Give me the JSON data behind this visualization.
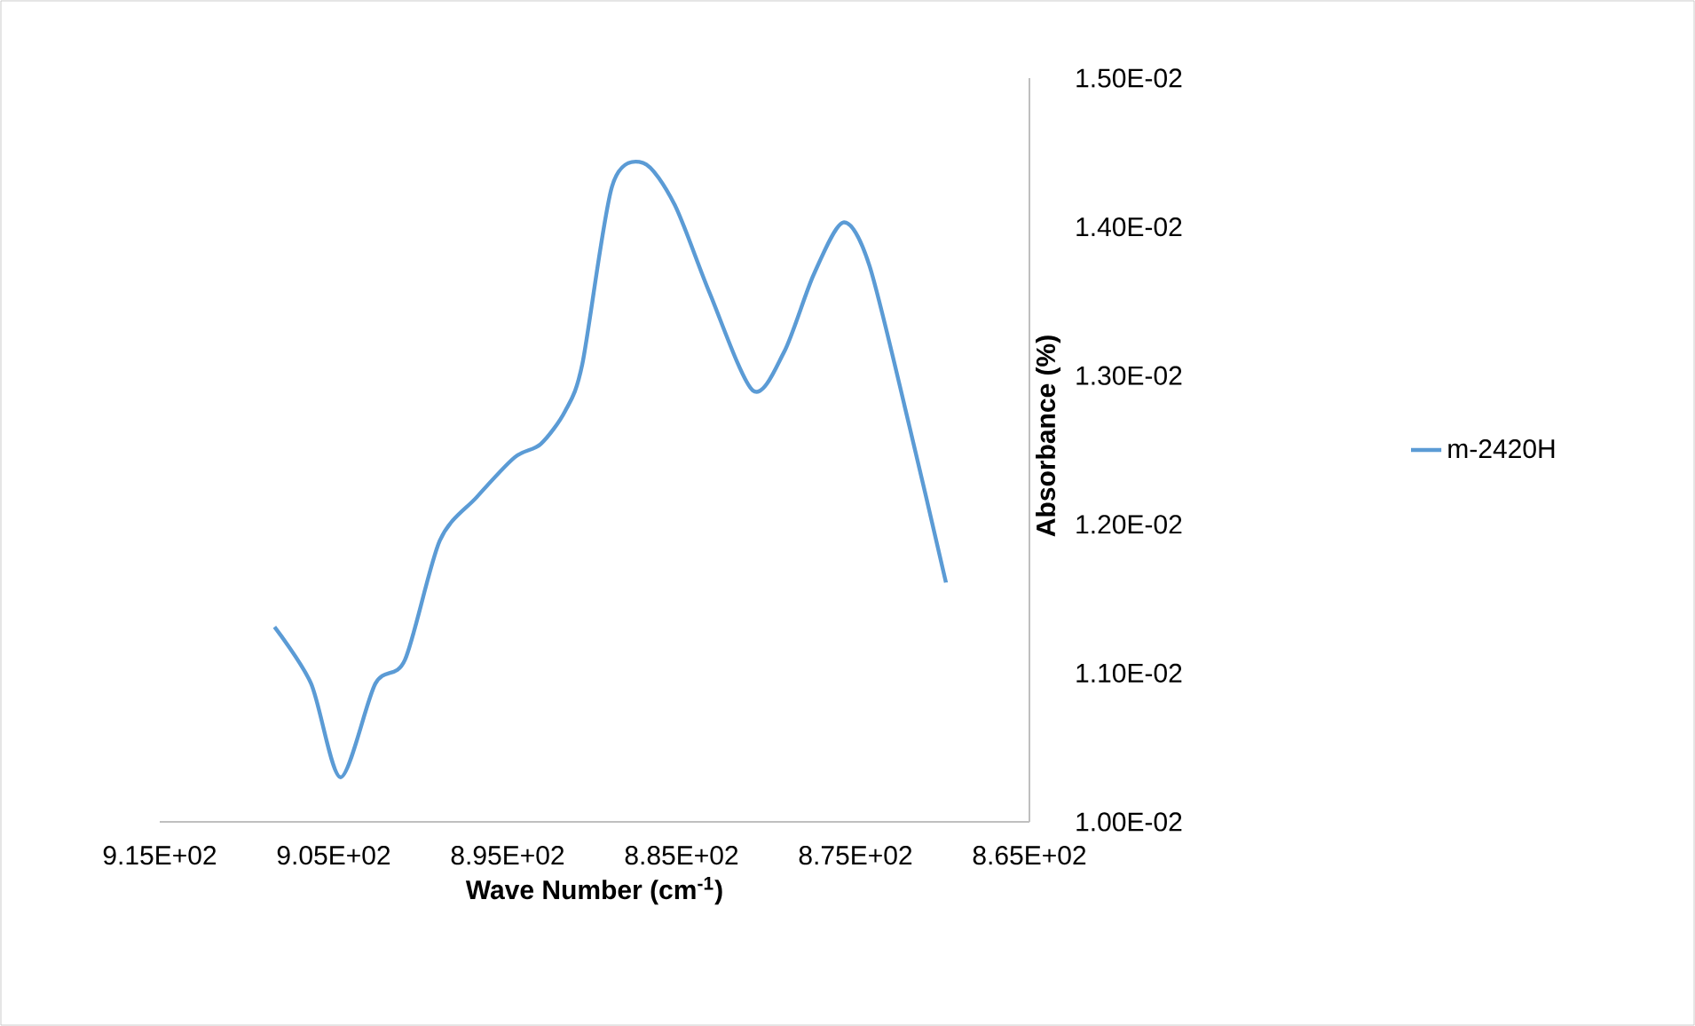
{
  "chart_data": {
    "type": "line",
    "xlabel": "Wave Number (cm$^{-1}$)",
    "ylabel": "Absorbance (%)",
    "x": [
      908.4,
      906.3,
      904.6,
      902.6,
      900.9,
      898.9,
      896.8,
      894.6,
      893.1,
      891.7,
      890.7,
      889.0,
      887.2,
      885.4,
      883.4,
      880.9,
      879.1,
      877.4,
      875.7,
      874.2,
      871.9,
      869.8
    ],
    "series": [
      {
        "name": "m-2420H",
        "color": "#5b9bd5",
        "values": [
          0.01131,
          0.01093,
          0.0103,
          0.01093,
          0.01109,
          0.01189,
          0.01218,
          0.01245,
          0.01254,
          0.01276,
          0.01308,
          0.01427,
          0.01443,
          0.01415,
          0.01356,
          0.0129,
          0.01316,
          0.01368,
          0.01403,
          0.01374,
          0.01266,
          0.01161
        ]
      }
    ],
    "xlim": [
      915,
      865
    ],
    "ylim": [
      0.01,
      0.015
    ],
    "xticks": [
      {
        "value": 915,
        "label": "9.15E+02"
      },
      {
        "value": 905,
        "label": "9.05E+02"
      },
      {
        "value": 895,
        "label": "8.95E+02"
      },
      {
        "value": 885,
        "label": "8.85E+02"
      },
      {
        "value": 875,
        "label": "8.75E+02"
      },
      {
        "value": 865,
        "label": "8.65E+02"
      }
    ],
    "yticks": [
      {
        "value": 0.01,
        "label": "1.00E-02"
      },
      {
        "value": 0.011,
        "label": "1.10E-02"
      },
      {
        "value": 0.012,
        "label": "1.20E-02"
      },
      {
        "value": 0.013,
        "label": "1.30E-02"
      },
      {
        "value": 0.014,
        "label": "1.40E-02"
      },
      {
        "value": 0.015,
        "label": "1.50E-02"
      }
    ],
    "legend": "right",
    "grid": false
  }
}
